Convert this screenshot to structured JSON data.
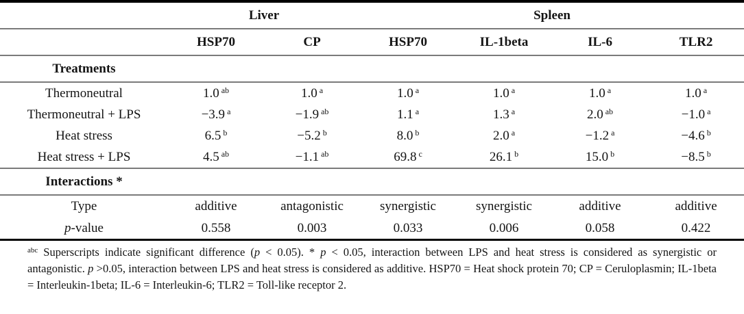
{
  "header": {
    "groups": [
      {
        "label": "Liver",
        "span": 2
      },
      {
        "label": "Spleen",
        "span": 4
      }
    ],
    "columns": [
      "HSP70",
      "CP",
      "HSP70",
      "IL-1beta",
      "IL-6",
      "TLR2"
    ]
  },
  "treatments": {
    "section_label": "Treatments",
    "rows": [
      {
        "label": "Thermoneutral",
        "cells": [
          {
            "v": "1.0",
            "sup": "ab"
          },
          {
            "v": "1.0",
            "sup": "a"
          },
          {
            "v": "1.0",
            "sup": "a"
          },
          {
            "v": "1.0",
            "sup": "a"
          },
          {
            "v": "1.0",
            "sup": "a"
          },
          {
            "v": "1.0",
            "sup": "a"
          }
        ]
      },
      {
        "label": "Thermoneutral + LPS",
        "cells": [
          {
            "v": "−3.9",
            "sup": "a"
          },
          {
            "v": "−1.9",
            "sup": "ab"
          },
          {
            "v": "1.1",
            "sup": "a"
          },
          {
            "v": "1.3",
            "sup": "a"
          },
          {
            "v": "2.0",
            "sup": "ab"
          },
          {
            "v": "−1.0",
            "sup": "a"
          }
        ]
      },
      {
        "label": "Heat stress",
        "cells": [
          {
            "v": "6.5",
            "sup": "b"
          },
          {
            "v": "−5.2",
            "sup": "b"
          },
          {
            "v": "8.0",
            "sup": "b"
          },
          {
            "v": "2.0",
            "sup": "a"
          },
          {
            "v": "−1.2",
            "sup": "a"
          },
          {
            "v": "−4.6",
            "sup": "b"
          }
        ]
      },
      {
        "label": "Heat stress + LPS",
        "cells": [
          {
            "v": "4.5",
            "sup": "ab"
          },
          {
            "v": "−1.1",
            "sup": "ab"
          },
          {
            "v": "69.8",
            "sup": "c"
          },
          {
            "v": "26.1",
            "sup": "b"
          },
          {
            "v": "15.0",
            "sup": "b"
          },
          {
            "v": "−8.5",
            "sup": "b"
          }
        ]
      }
    ]
  },
  "interactions": {
    "section_label": "Interactions *",
    "type_row": {
      "label": "Type",
      "values": [
        "additive",
        "antagonistic",
        "synergistic",
        "synergistic",
        "additive",
        "additive"
      ]
    },
    "pvalue_row": {
      "label_italic": "p",
      "label_rest": "-value",
      "values": [
        "0.558",
        "0.003",
        "0.033",
        "0.006",
        "0.058",
        "0.422"
      ]
    }
  },
  "footnote": {
    "segments": [
      {
        "text": "abc"
      },
      {
        "text": " Superscripts indicate significant difference ("
      },
      {
        "text": "p"
      },
      {
        "text": " < 0.05).  * "
      },
      {
        "text": "p"
      },
      {
        "text": " < 0.05, interaction between LPS and heat stress is considered as synergistic or antagonistic.  "
      },
      {
        "text": "p"
      },
      {
        "text": " >0.05, interaction between LPS and heat stress is considered as additive.  HSP70 = Heat shock protein 70; CP = Ceruloplasmin; IL-1beta = Interleukin-1beta; IL-6 = Interleukin-6; TLR2 = Toll-like receptor 2."
      }
    ]
  }
}
